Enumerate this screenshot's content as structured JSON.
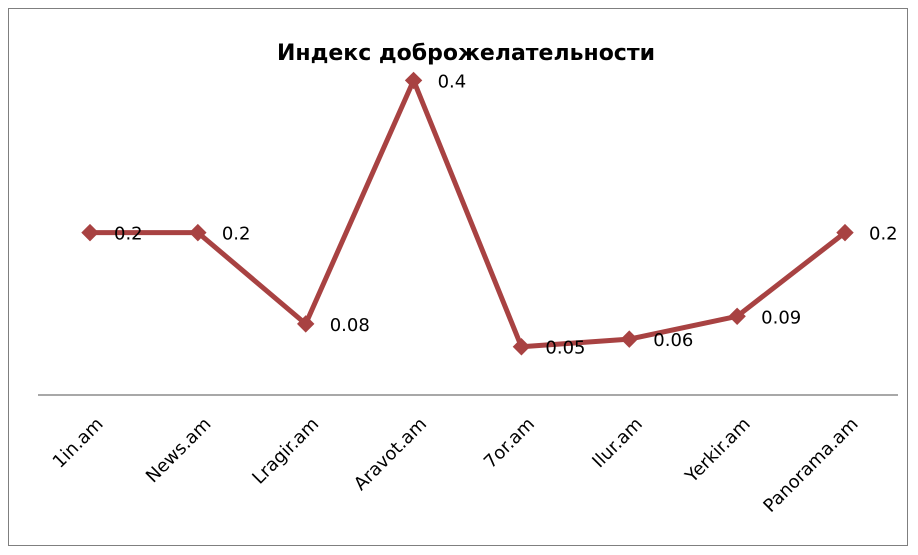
{
  "chart_data": {
    "type": "line",
    "title": "Индекс доброжелательности",
    "categories": [
      "1in.am",
      "News.am",
      "Lragir.am",
      "Aravot.am",
      "7or.am",
      "Ilur.am",
      "Yerkir.am",
      "Panorama.am"
    ],
    "values": [
      0.2,
      0.2,
      0.08,
      0.4,
      0.05,
      0.06,
      0.09,
      0.2
    ],
    "data_labels": [
      "0.2",
      "0.2",
      "0.08",
      "0.4",
      "0.05",
      "0.06",
      "0.09",
      "0.2"
    ],
    "ylim": [
      -0.02,
      0.44
    ],
    "grid": false,
    "legend": "none",
    "xlabel": "",
    "ylabel": "",
    "colors": {
      "line": "#A84242",
      "marker": "#A84242",
      "axis": "#8c8c8c",
      "frame": "#7f7f7f"
    }
  }
}
